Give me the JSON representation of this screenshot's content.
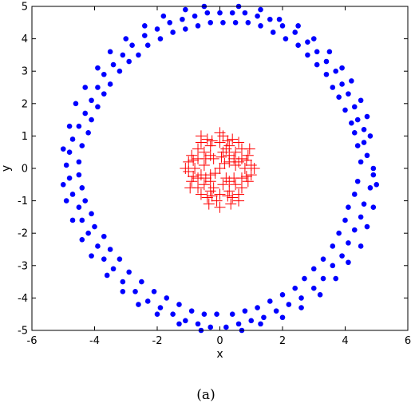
{
  "chart_data": {
    "type": "scatter",
    "xlabel": "x",
    "ylabel": "y",
    "xlim": [
      -6,
      6
    ],
    "ylim": [
      -5,
      5
    ],
    "x_ticks": [
      "-6",
      "-4",
      "-2",
      "0",
      "2",
      "4",
      "6"
    ],
    "y_ticks": [
      "-5",
      "-4",
      "-3",
      "-2",
      "-1",
      "0",
      "1",
      "2",
      "3",
      "4",
      "5"
    ],
    "grid": false,
    "caption": "(a)",
    "series": [
      {
        "marker": "filled-circle",
        "color": "#0000ff",
        "points": [
          [
            4.9,
            0.0
          ],
          [
            4.7,
            0.4
          ],
          [
            4.6,
            0.8
          ],
          [
            4.6,
            1.2
          ],
          [
            4.4,
            1.5
          ],
          [
            4.3,
            1.9
          ],
          [
            4.1,
            2.3
          ],
          [
            3.9,
            2.6
          ],
          [
            3.7,
            3.0
          ],
          [
            3.4,
            3.3
          ],
          [
            3.1,
            3.6
          ],
          [
            2.8,
            3.9
          ],
          [
            2.4,
            4.2
          ],
          [
            2.0,
            4.4
          ],
          [
            1.6,
            4.6
          ],
          [
            1.2,
            4.7
          ],
          [
            0.8,
            4.8
          ],
          [
            0.4,
            4.8
          ],
          [
            0.0,
            4.8
          ],
          [
            -0.4,
            4.8
          ],
          [
            -0.8,
            4.7
          ],
          [
            -1.2,
            4.6
          ],
          [
            -1.6,
            4.5
          ],
          [
            -2.0,
            4.3
          ],
          [
            -2.4,
            4.1
          ],
          [
            -2.8,
            3.8
          ],
          [
            -3.1,
            3.5
          ],
          [
            -3.4,
            3.2
          ],
          [
            -3.7,
            2.9
          ],
          [
            -3.9,
            2.5
          ],
          [
            -4.1,
            2.1
          ],
          [
            -4.3,
            1.7
          ],
          [
            -4.5,
            1.3
          ],
          [
            -4.7,
            0.9
          ],
          [
            -4.8,
            0.5
          ],
          [
            -4.9,
            0.1
          ],
          [
            -4.8,
            -0.3
          ],
          [
            -4.7,
            -0.8
          ],
          [
            -4.5,
            -1.2
          ],
          [
            -4.4,
            -1.6
          ],
          [
            -4.2,
            -2.0
          ],
          [
            -3.9,
            -2.4
          ],
          [
            -3.7,
            -2.8
          ],
          [
            -3.4,
            -3.1
          ],
          [
            -3.1,
            -3.5
          ],
          [
            -2.7,
            -3.8
          ],
          [
            -2.3,
            -4.1
          ],
          [
            -1.9,
            -4.3
          ],
          [
            -1.5,
            -4.5
          ],
          [
            -1.1,
            -4.7
          ],
          [
            -0.7,
            -4.8
          ],
          [
            -0.3,
            -4.9
          ],
          [
            0.2,
            -4.9
          ],
          [
            0.6,
            -4.8
          ],
          [
            1.0,
            -4.7
          ],
          [
            1.4,
            -4.6
          ],
          [
            1.8,
            -4.4
          ],
          [
            2.2,
            -4.2
          ],
          [
            2.6,
            -4.0
          ],
          [
            3.0,
            -3.7
          ],
          [
            3.3,
            -3.4
          ],
          [
            3.6,
            -3.0
          ],
          [
            3.9,
            -2.7
          ],
          [
            4.1,
            -2.3
          ],
          [
            4.3,
            -1.9
          ],
          [
            4.5,
            -1.5
          ],
          [
            4.6,
            -1.1
          ],
          [
            4.8,
            -0.6
          ],
          [
            4.9,
            -0.2
          ],
          [
            4.5,
            0.2
          ],
          [
            4.4,
            0.7
          ],
          [
            4.3,
            1.1
          ],
          [
            4.2,
            1.4
          ],
          [
            4.0,
            1.8
          ],
          [
            3.8,
            2.2
          ],
          [
            3.6,
            2.5
          ],
          [
            3.4,
            2.9
          ],
          [
            3.1,
            3.2
          ],
          [
            2.8,
            3.5
          ],
          [
            2.5,
            3.8
          ],
          [
            2.1,
            4.0
          ],
          [
            1.7,
            4.2
          ],
          [
            1.3,
            4.4
          ],
          [
            0.9,
            4.5
          ],
          [
            0.5,
            4.5
          ],
          [
            0.1,
            4.5
          ],
          [
            -0.3,
            4.5
          ],
          [
            -0.7,
            4.4
          ],
          [
            -1.1,
            4.3
          ],
          [
            -1.5,
            4.2
          ],
          [
            -1.9,
            4.0
          ],
          [
            -2.3,
            3.8
          ],
          [
            -2.6,
            3.5
          ],
          [
            -2.9,
            3.3
          ],
          [
            -3.2,
            3.0
          ],
          [
            -3.5,
            2.6
          ],
          [
            -3.7,
            2.3
          ],
          [
            -3.9,
            1.9
          ],
          [
            -4.1,
            1.5
          ],
          [
            -4.2,
            1.1
          ],
          [
            -4.4,
            0.7
          ],
          [
            -4.5,
            0.2
          ],
          [
            -4.5,
            -0.2
          ],
          [
            -4.4,
            -0.6
          ],
          [
            -4.3,
            -1.0
          ],
          [
            -4.1,
            -1.4
          ],
          [
            -4.0,
            -1.8
          ],
          [
            -3.7,
            -2.1
          ],
          [
            -3.5,
            -2.5
          ],
          [
            -3.2,
            -2.8
          ],
          [
            -2.9,
            -3.2
          ],
          [
            -2.5,
            -3.5
          ],
          [
            -2.1,
            -3.8
          ],
          [
            -1.7,
            -4.0
          ],
          [
            -1.3,
            -4.2
          ],
          [
            -0.9,
            -4.4
          ],
          [
            -0.5,
            -4.5
          ],
          [
            -0.1,
            -4.5
          ],
          [
            0.4,
            -4.5
          ],
          [
            0.8,
            -4.4
          ],
          [
            1.2,
            -4.3
          ],
          [
            1.6,
            -4.1
          ],
          [
            2.0,
            -3.9
          ],
          [
            2.4,
            -3.7
          ],
          [
            2.7,
            -3.4
          ],
          [
            3.0,
            -3.1
          ],
          [
            3.3,
            -2.8
          ],
          [
            3.6,
            -2.4
          ],
          [
            3.8,
            -2.0
          ],
          [
            4.0,
            -1.6
          ],
          [
            4.1,
            -1.2
          ],
          [
            4.3,
            -0.8
          ],
          [
            4.4,
            -0.4
          ],
          [
            5.0,
            -0.5
          ],
          [
            4.8,
            1.0
          ],
          [
            4.7,
            1.6
          ],
          [
            4.5,
            2.1
          ],
          [
            4.2,
            2.7
          ],
          [
            3.9,
            3.1
          ],
          [
            3.5,
            3.6
          ],
          [
            3.0,
            4.0
          ],
          [
            2.5,
            4.4
          ],
          [
            1.9,
            4.6
          ],
          [
            1.3,
            4.9
          ],
          [
            0.6,
            5.0
          ],
          [
            -0.5,
            5.0
          ],
          [
            -1.1,
            4.9
          ],
          [
            -1.8,
            4.7
          ],
          [
            -2.4,
            4.4
          ],
          [
            -3.0,
            4.0
          ],
          [
            -3.5,
            3.6
          ],
          [
            -3.9,
            3.1
          ],
          [
            -4.3,
            2.5
          ],
          [
            -4.6,
            2.0
          ],
          [
            -4.8,
            1.3
          ],
          [
            -5.0,
            0.6
          ],
          [
            -5.0,
            -0.5
          ],
          [
            -4.9,
            -1.0
          ],
          [
            -4.7,
            -1.6
          ],
          [
            -4.4,
            -2.2
          ],
          [
            -4.1,
            -2.7
          ],
          [
            -3.6,
            -3.3
          ],
          [
            -3.1,
            -3.8
          ],
          [
            -2.6,
            -4.2
          ],
          [
            -2.0,
            -4.5
          ],
          [
            -1.3,
            -4.8
          ],
          [
            -0.6,
            -5.0
          ],
          [
            0.7,
            -5.0
          ],
          [
            1.3,
            -4.8
          ],
          [
            2.0,
            -4.6
          ],
          [
            2.6,
            -4.3
          ],
          [
            3.2,
            -3.9
          ],
          [
            3.7,
            -3.4
          ],
          [
            4.1,
            -2.9
          ],
          [
            4.5,
            -2.4
          ],
          [
            4.7,
            -1.8
          ],
          [
            4.9,
            -1.2
          ]
        ]
      },
      {
        "marker": "plus",
        "color": "#ff0000",
        "points": [
          [
            0.0,
            0.0
          ],
          [
            0.3,
            0.2
          ],
          [
            -0.3,
            -0.2
          ],
          [
            0.5,
            0.5
          ],
          [
            -0.5,
            0.5
          ],
          [
            0.5,
            -0.5
          ],
          [
            -0.5,
            -0.5
          ],
          [
            0.8,
            0.0
          ],
          [
            -0.8,
            0.0
          ],
          [
            0.0,
            0.8
          ],
          [
            0.0,
            -0.8
          ],
          [
            0.9,
            0.4
          ],
          [
            -0.9,
            0.4
          ],
          [
            0.9,
            -0.4
          ],
          [
            -0.9,
            -0.4
          ],
          [
            0.4,
            0.9
          ],
          [
            -0.4,
            0.9
          ],
          [
            0.4,
            -0.9
          ],
          [
            -0.4,
            -0.9
          ],
          [
            0.2,
            -0.3
          ],
          [
            -0.2,
            0.3
          ],
          [
            0.6,
            0.2
          ],
          [
            -0.6,
            -0.2
          ],
          [
            0.2,
            0.6
          ],
          [
            -0.2,
            -0.6
          ],
          [
            1.0,
            0.1
          ],
          [
            -1.0,
            -0.1
          ],
          [
            0.1,
            1.0
          ],
          [
            -0.1,
            -1.0
          ],
          [
            0.7,
            0.6
          ],
          [
            -0.7,
            0.6
          ],
          [
            0.7,
            -0.6
          ],
          [
            -0.7,
            -0.6
          ],
          [
            0.3,
            0.4
          ],
          [
            -0.3,
            0.4
          ],
          [
            0.3,
            -0.4
          ],
          [
            -0.3,
            -0.4
          ],
          [
            1.0,
            -0.2
          ],
          [
            -1.0,
            0.2
          ],
          [
            0.1,
            0.5
          ],
          [
            0.1,
            -0.5
          ],
          [
            0.5,
            0.1
          ],
          [
            -0.5,
            0.1
          ],
          [
            0.6,
            0.8
          ],
          [
            -0.6,
            0.8
          ],
          [
            0.6,
            -0.8
          ],
          [
            -0.6,
            -0.8
          ],
          [
            0.85,
            0.25
          ],
          [
            -0.85,
            0.25
          ],
          [
            0.85,
            -0.25
          ],
          [
            -0.85,
            -0.25
          ],
          [
            0.25,
            0.85
          ],
          [
            -0.25,
            0.85
          ],
          [
            0.25,
            -0.85
          ],
          [
            -0.25,
            -0.85
          ],
          [
            0.45,
            0.3
          ],
          [
            -0.45,
            0.3
          ],
          [
            0.45,
            -0.3
          ],
          [
            -0.45,
            -0.3
          ],
          [
            0.15,
            0.15
          ],
          [
            -0.15,
            -0.15
          ],
          [
            0.7,
            0.3
          ],
          [
            -0.7,
            0.3
          ],
          [
            0.7,
            -0.3
          ],
          [
            -0.7,
            -0.3
          ],
          [
            0.3,
            0.7
          ],
          [
            -0.3,
            0.7
          ],
          [
            0.3,
            -0.7
          ],
          [
            -0.3,
            -0.7
          ],
          [
            0.05,
            0.35
          ],
          [
            0.0,
            -1.2
          ],
          [
            0.35,
            -1.1
          ],
          [
            -0.35,
            -1.1
          ],
          [
            0.0,
            1.1
          ],
          [
            1.1,
            0.0
          ],
          [
            -1.1,
            0.0
          ],
          [
            0.6,
            -1.0
          ],
          [
            -0.6,
            1.0
          ],
          [
            0.95,
            0.6
          ],
          [
            -0.95,
            -0.6
          ]
        ]
      }
    ]
  }
}
